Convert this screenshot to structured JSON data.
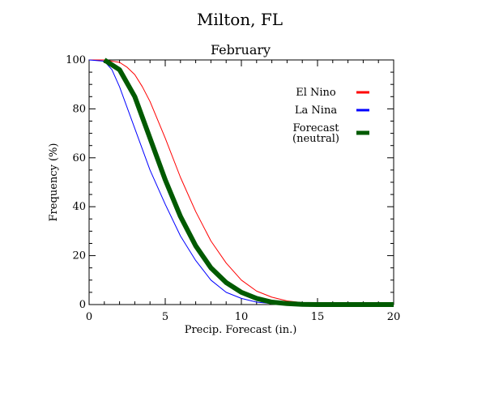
{
  "chart_data": {
    "type": "line",
    "title": "Milton, FL",
    "subtitle": "February",
    "xlabel": "Precip. Forecast (in.)",
    "ylabel": "Frequency (%)",
    "xlim": [
      0,
      20
    ],
    "ylim": [
      0,
      100
    ],
    "x_ticks": [
      0,
      5,
      10,
      15,
      20
    ],
    "y_ticks": [
      0,
      20,
      40,
      60,
      80,
      100
    ],
    "grid": false,
    "legend_placement": "top-right",
    "series": [
      {
        "name": "El Nino",
        "color": "#ff0000",
        "style": "thin",
        "x": [
          0,
          1,
          2,
          2.5,
          3,
          3.5,
          4,
          5,
          6,
          7,
          8,
          9,
          10,
          11,
          12,
          13,
          14,
          15,
          16,
          17,
          18,
          19,
          20
        ],
        "y": [
          100,
          100,
          99,
          97,
          94,
          89,
          83,
          68,
          52,
          38,
          26,
          17,
          10,
          5.5,
          3,
          1.5,
          0.8,
          0.3,
          0.1,
          0,
          0,
          0,
          0
        ]
      },
      {
        "name": "La Nina",
        "color": "#0000ff",
        "style": "thin",
        "x": [
          0,
          1,
          1.5,
          2,
          3,
          4,
          5,
          6,
          7,
          8,
          9,
          10,
          11,
          12,
          13,
          14,
          15,
          16,
          17,
          18,
          19,
          20
        ],
        "y": [
          100,
          99.5,
          96,
          89,
          72,
          55,
          41,
          28,
          18,
          10,
          5,
          2.5,
          1,
          0.4,
          0.1,
          0,
          0,
          0,
          0,
          0,
          0,
          0
        ]
      },
      {
        "name": "Forecast (neutral)",
        "label_lines": [
          "Forecast",
          "(neutral)"
        ],
        "color": "#005a00",
        "style": "thick",
        "x": [
          1,
          2,
          3,
          4,
          5,
          6,
          7,
          8,
          9,
          10,
          11,
          12,
          13,
          14,
          15,
          16,
          17,
          18,
          19,
          20
        ],
        "y": [
          100,
          96,
          85,
          68,
          51,
          36,
          24,
          15,
          9,
          5,
          2.5,
          1,
          0.4,
          0.1,
          0,
          0,
          0,
          0,
          0,
          0
        ]
      }
    ]
  }
}
